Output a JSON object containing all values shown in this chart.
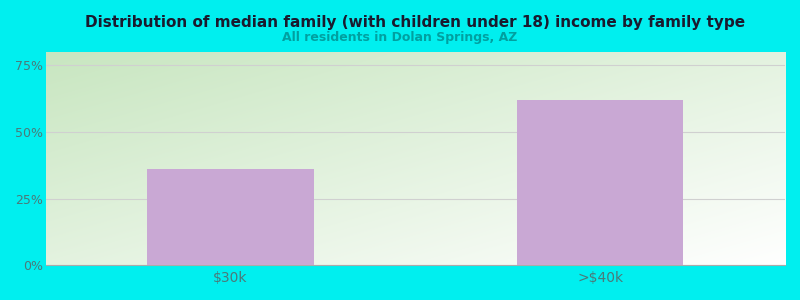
{
  "categories": [
    "$30k",
    ">$40k"
  ],
  "values": [
    36,
    62
  ],
  "bar_color": "#c9a8d4",
  "title": "Distribution of median family (with children under 18) income by family type",
  "subtitle": "All residents in Dolan Springs, AZ",
  "title_color": "#1a1a2e",
  "subtitle_color": "#00a0a0",
  "background_color": "#00efef",
  "plot_bg_topleft": "#c8e6c0",
  "plot_bg_bottomright": "#ffffff",
  "yticks": [
    0,
    25,
    50,
    75
  ],
  "ylim": [
    0,
    80
  ],
  "tick_color": "#4a7a7a",
  "grid_color": "#d0d0d0"
}
